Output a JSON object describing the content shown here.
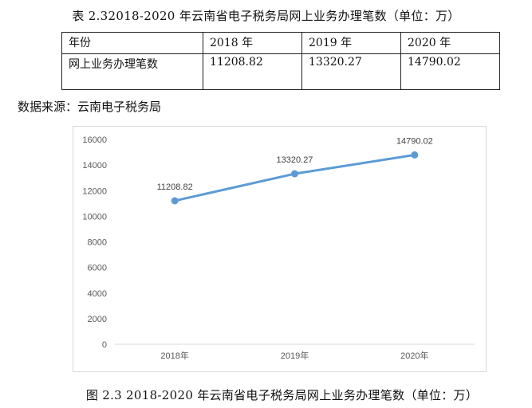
{
  "table_title": "表 2.32018-2020 年云南省电子税务局网上业务办理笔数（单位：万）",
  "table": {
    "header": [
      "年份",
      "2018 年",
      "2019 年",
      "2020 年"
    ],
    "row_label": "网上业务办理笔数",
    "values": [
      "11208.82",
      "13320.27",
      "14790.02"
    ]
  },
  "source": "数据来源：云南电子税务局",
  "chart_data": {
    "type": "line",
    "categories": [
      "2018年",
      "2019年",
      "2020年"
    ],
    "series": [
      {
        "values": [
          11208.82,
          13320.27,
          14790.02
        ],
        "color": "#5b9bd5"
      }
    ],
    "data_labels": [
      "11208.82",
      "13320.27",
      "14790.02"
    ],
    "yticks": [
      "0",
      "2000",
      "4000",
      "6000",
      "8000",
      "10000",
      "12000",
      "14000",
      "16000"
    ],
    "ylim": [
      0,
      16000
    ],
    "grid": false,
    "legend": "none"
  },
  "figure_caption": "图 2.3 2018-2020 年云南省电子税务局网上业务办理笔数（单位：万）"
}
